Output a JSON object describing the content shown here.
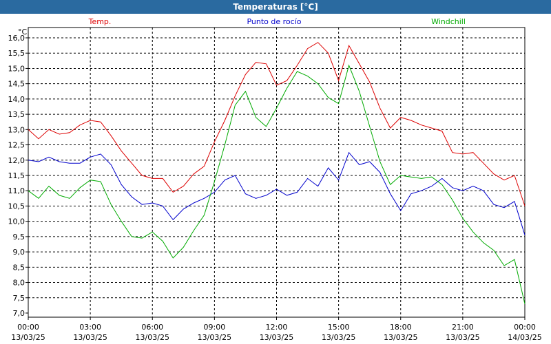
{
  "window": {
    "title": "Temperaturas [°C]"
  },
  "chart_data": {
    "type": "line",
    "title": "Temperaturas [°C]",
    "ylabel": "°C",
    "ylim": [
      7.0,
      16.0
    ],
    "yticks": [
      "7,0",
      "7,5",
      "8,0",
      "8,5",
      "9,0",
      "9,5",
      "10,0",
      "10,5",
      "11,0",
      "11,5",
      "12,0",
      "12,5",
      "13,0",
      "13,5",
      "14,0",
      "14,5",
      "15,0",
      "15,5",
      "16,0"
    ],
    "xlim": [
      0,
      24
    ],
    "xticks": [
      {
        "h": 0,
        "time": "00:00",
        "date": "13/03/25"
      },
      {
        "h": 3,
        "time": "03:00",
        "date": "13/03/25"
      },
      {
        "h": 6,
        "time": "06:00",
        "date": "13/03/25"
      },
      {
        "h": 9,
        "time": "09:00",
        "date": "13/03/25"
      },
      {
        "h": 12,
        "time": "12:00",
        "date": "13/03/25"
      },
      {
        "h": 15,
        "time": "15:00",
        "date": "13/03/25"
      },
      {
        "h": 18,
        "time": "18:00",
        "date": "13/03/25"
      },
      {
        "h": 21,
        "time": "21:00",
        "date": "13/03/25"
      },
      {
        "h": 24,
        "time": "00:00",
        "date": "14/03/25"
      }
    ],
    "x_hours": [
      0,
      0.5,
      1,
      1.5,
      2,
      2.5,
      3,
      3.5,
      4,
      4.5,
      5,
      5.5,
      6,
      6.5,
      7,
      7.5,
      8,
      8.5,
      9,
      9.5,
      10,
      10.5,
      11,
      11.5,
      12,
      12.5,
      13,
      13.5,
      14,
      14.5,
      15,
      15.5,
      16,
      16.5,
      17,
      17.5,
      18,
      18.5,
      19,
      19.5,
      20,
      20.5,
      21,
      21.5,
      22,
      22.5,
      23,
      23.5,
      24
    ],
    "series": [
      {
        "name": "Temp.",
        "color": "#dd0000",
        "values": [
          13.0,
          12.7,
          13.0,
          12.85,
          12.9,
          13.15,
          13.3,
          13.25,
          12.8,
          12.3,
          11.9,
          11.5,
          11.4,
          11.4,
          10.95,
          11.15,
          11.55,
          11.8,
          12.6,
          13.3,
          14.1,
          14.8,
          15.2,
          15.15,
          14.45,
          14.6,
          15.1,
          15.65,
          15.85,
          15.5,
          14.6,
          15.75,
          15.15,
          14.55,
          13.7,
          13.05,
          13.4,
          13.3,
          13.15,
          13.05,
          12.95,
          12.25,
          12.2,
          12.25,
          11.9,
          11.55,
          11.35,
          11.5,
          10.5
        ]
      },
      {
        "name": "Punto de rocío",
        "color": "#0000cc",
        "values": [
          12.0,
          11.95,
          12.1,
          11.95,
          11.9,
          11.9,
          12.1,
          12.2,
          11.85,
          11.2,
          10.8,
          10.55,
          10.6,
          10.5,
          10.05,
          10.4,
          10.6,
          10.75,
          10.95,
          11.35,
          11.5,
          10.9,
          10.75,
          10.85,
          11.05,
          10.85,
          10.95,
          11.4,
          11.15,
          11.75,
          11.35,
          12.25,
          11.85,
          11.95,
          11.6,
          10.9,
          10.35,
          10.9,
          11.0,
          11.15,
          11.4,
          11.1,
          11.0,
          11.15,
          11.0,
          10.55,
          10.45,
          10.65,
          9.55
        ]
      },
      {
        "name": "Windchill",
        "color": "#00aa00",
        "values": [
          11.0,
          10.75,
          11.15,
          10.85,
          10.75,
          11.1,
          11.35,
          11.3,
          10.55,
          10.0,
          9.5,
          9.45,
          9.65,
          9.35,
          8.8,
          9.15,
          9.7,
          10.2,
          11.3,
          12.5,
          13.8,
          14.25,
          13.4,
          13.1,
          13.7,
          14.35,
          14.9,
          14.75,
          14.5,
          14.05,
          13.85,
          15.1,
          14.25,
          13.1,
          11.95,
          11.2,
          11.5,
          11.45,
          11.4,
          11.45,
          11.2,
          10.7,
          10.1,
          9.65,
          9.3,
          9.05,
          8.55,
          8.75,
          7.3
        ]
      }
    ]
  }
}
